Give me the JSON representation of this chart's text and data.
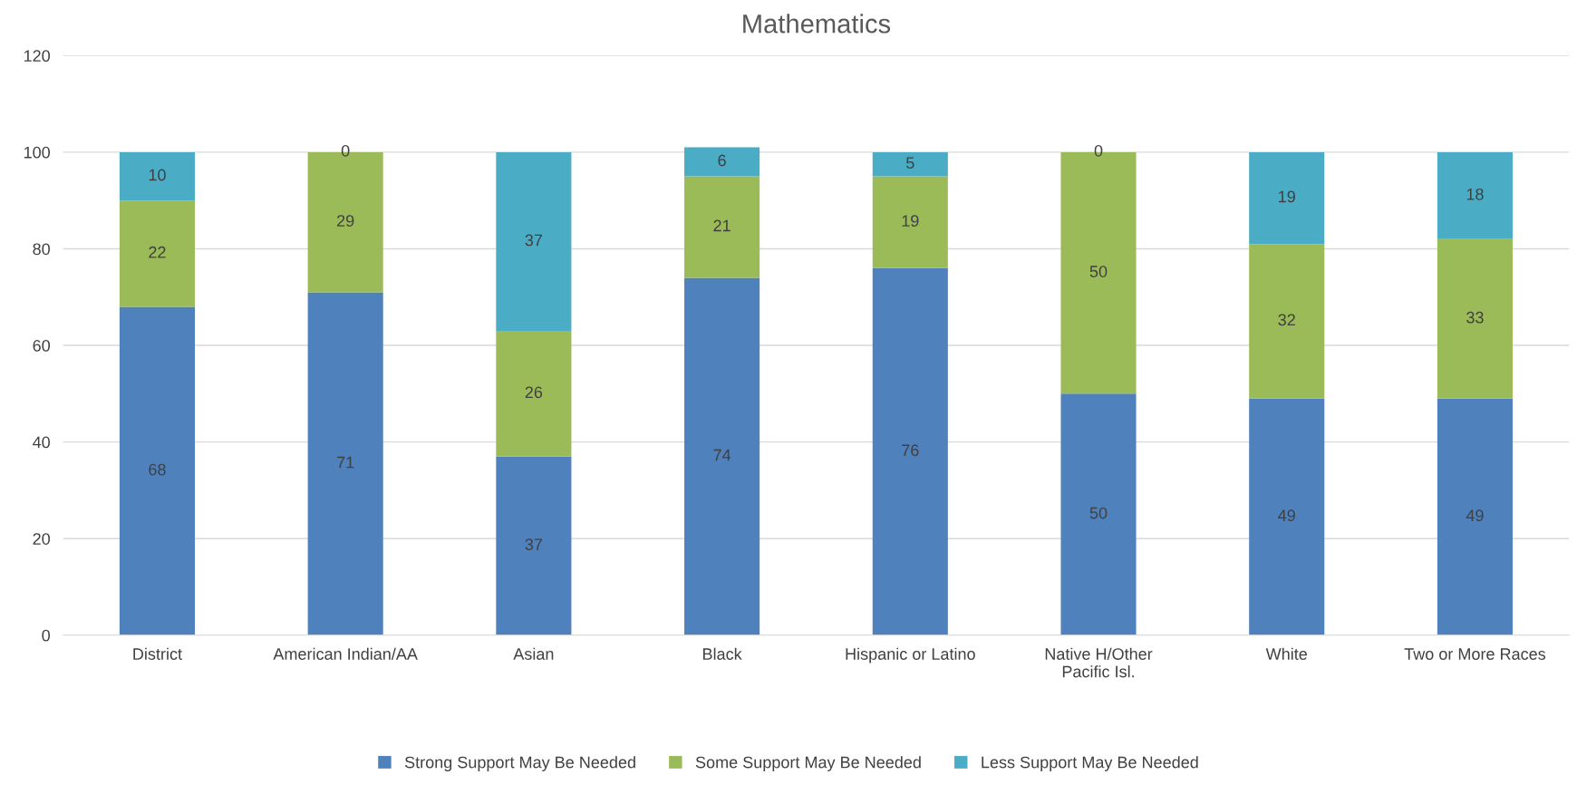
{
  "chart_data": {
    "type": "bar",
    "title": "Mathematics",
    "categories": [
      "District",
      "American Indian/AA",
      "Asian",
      "Black",
      "Hispanic or Latino",
      "Native H/Other\nPacific Isl.",
      "White",
      "Two or More Races"
    ],
    "series": [
      {
        "name": "Strong Support May Be Needed",
        "color": "#4f81bd",
        "values": [
          68,
          71,
          37,
          74,
          76,
          50,
          49,
          49
        ]
      },
      {
        "name": "Some Support May Be Needed",
        "color": "#9bbb59",
        "values": [
          22,
          29,
          26,
          21,
          19,
          50,
          32,
          33
        ]
      },
      {
        "name": "Less Support May Be Needed",
        "color": "#4bacc6",
        "values": [
          10,
          0,
          37,
          6,
          5,
          0,
          19,
          18
        ]
      }
    ],
    "stacked": true,
    "data_labels": true,
    "ylim": [
      0,
      120
    ],
    "yticks": [
      0,
      20,
      40,
      60,
      80,
      100,
      120
    ],
    "grid": "y",
    "legend": "bottom"
  }
}
